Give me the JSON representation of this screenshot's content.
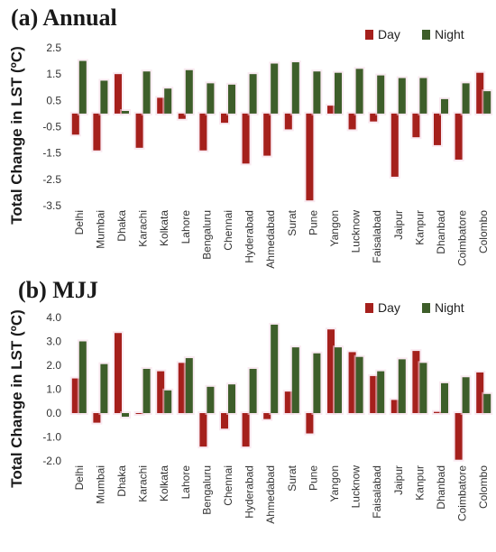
{
  "colors": {
    "day": "#a5201c",
    "night": "#3e5e2a"
  },
  "chart_data": [
    {
      "type": "bar",
      "title": "(a) Annual",
      "ylabel": "Total Change in LST (ºC)",
      "ylim": [
        -3.5,
        2.5
      ],
      "yticks": [
        "2.5",
        "1.5",
        "0.5",
        "-0.5",
        "-1.5",
        "-2.5",
        "-3.5"
      ],
      "legend_position": "top-right",
      "categories": [
        "Delhi",
        "Mumbai",
        "Dhaka",
        "Karachi",
        "Kolkata",
        "Lahore",
        "Bengaluru",
        "Chennai",
        "Hyderabad",
        "Ahmedabad",
        "Surat",
        "Pune",
        "Yangon",
        "Lucknow",
        "Faisalabad",
        "Jaipur",
        "Kanpur",
        "Dhanbad",
        "Coimbatore",
        "Colombo"
      ],
      "series": [
        {
          "name": "Day",
          "values": [
            -0.8,
            -1.4,
            1.5,
            -1.3,
            0.6,
            -0.2,
            -1.4,
            -0.35,
            -1.9,
            -1.6,
            -0.6,
            -3.3,
            0.3,
            -0.6,
            -0.3,
            -2.4,
            -0.9,
            -1.2,
            -1.75,
            1.55
          ]
        },
        {
          "name": "Night",
          "values": [
            2.0,
            1.25,
            0.1,
            1.6,
            0.95,
            1.65,
            1.15,
            1.1,
            1.5,
            1.9,
            1.95,
            1.6,
            1.55,
            1.7,
            1.45,
            1.35,
            1.35,
            0.55,
            1.15,
            0.85
          ]
        }
      ]
    },
    {
      "type": "bar",
      "title": "(b) MJJ",
      "ylabel": "Total Change in LST (ºC)",
      "ylim": [
        -2.0,
        4.0
      ],
      "yticks": [
        "4.0",
        "3.0",
        "2.0",
        "1.0",
        "0.0",
        "-1.0",
        "-2.0"
      ],
      "legend_position": "top-right",
      "categories": [
        "Delhi",
        "Mumbai",
        "Dhaka",
        "Karachi",
        "Kolkata",
        "Lahore",
        "Bengaluru",
        "Chennai",
        "Hyderabad",
        "Ahmedabad",
        "Surat",
        "Pune",
        "Yangon",
        "Lucknow",
        "Faisalabad",
        "Jaipur",
        "Kanpur",
        "Dhanbad",
        "Coimbatore",
        "Colombo"
      ],
      "series": [
        {
          "name": "Day",
          "values": [
            1.45,
            -0.4,
            3.35,
            0.0,
            1.75,
            2.1,
            -1.4,
            -0.65,
            -1.4,
            -0.25,
            0.9,
            -0.85,
            3.5,
            2.55,
            1.55,
            0.55,
            2.6,
            0.05,
            -1.95,
            1.7
          ]
        },
        {
          "name": "Night",
          "values": [
            3.0,
            2.05,
            -0.15,
            1.85,
            0.95,
            2.3,
            1.1,
            1.2,
            1.85,
            3.7,
            2.75,
            2.5,
            2.75,
            2.35,
            1.75,
            2.25,
            2.1,
            1.25,
            1.5,
            0.8
          ]
        }
      ]
    }
  ]
}
